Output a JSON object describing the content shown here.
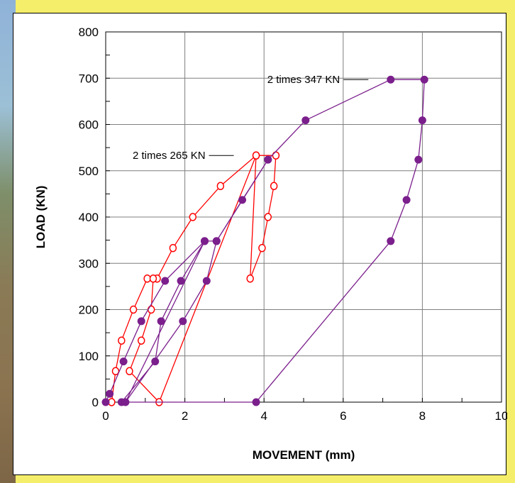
{
  "chart_data": {
    "type": "scatter",
    "xlabel": "MOVEMENT  (mm)",
    "ylabel": "LOAD  (KN)",
    "xlim": [
      0,
      10
    ],
    "ylim": [
      0,
      800
    ],
    "x_ticks": [
      0,
      2,
      4,
      6,
      8,
      10
    ],
    "y_ticks": [
      0,
      100,
      200,
      300,
      400,
      500,
      600,
      700,
      800
    ],
    "x_tick_labels": [
      "0",
      "2",
      "4",
      "6",
      "8",
      "10"
    ],
    "y_tick_labels": [
      "0",
      "100",
      "200",
      "300",
      "400",
      "500",
      "600",
      "700",
      "800"
    ],
    "grid": true,
    "series": [
      {
        "color": "#ff0000",
        "marker": "open-circle",
        "points": [
          [
            0.15,
            0
          ],
          [
            0.25,
            67
          ],
          [
            0.4,
            133
          ],
          [
            0.7,
            200
          ],
          [
            1.05,
            267
          ],
          [
            1.3,
            267
          ],
          [
            1.7,
            333
          ],
          [
            2.2,
            400
          ],
          [
            2.9,
            467
          ],
          [
            3.8,
            533
          ],
          [
            4.3,
            533
          ],
          [
            4.25,
            467
          ],
          [
            4.1,
            400
          ],
          [
            3.95,
            333
          ],
          [
            3.65,
            267
          ],
          [
            3.8,
            533
          ],
          [
            1.35,
            0
          ],
          [
            0.6,
            67
          ],
          [
            0.9,
            133
          ],
          [
            1.15,
            200
          ],
          [
            1.2,
            267
          ]
        ]
      },
      {
        "color": "#7b1f8c",
        "marker": "filled-circle",
        "points": [
          [
            0.0,
            0
          ],
          [
            0.1,
            18
          ],
          [
            0.45,
            88
          ],
          [
            0.9,
            175
          ],
          [
            1.5,
            262
          ],
          [
            2.5,
            348
          ],
          [
            2.8,
            348
          ],
          [
            3.45,
            437
          ],
          [
            4.1,
            524
          ],
          [
            5.05,
            609
          ],
          [
            7.2,
            697
          ],
          [
            8.05,
            697
          ],
          [
            8.0,
            609
          ],
          [
            7.9,
            524
          ],
          [
            7.6,
            437
          ],
          [
            7.2,
            348
          ],
          [
            3.8,
            0
          ],
          [
            0.4,
            0
          ],
          [
            1.25,
            88
          ],
          [
            1.4,
            175
          ],
          [
            1.9,
            262
          ],
          [
            2.5,
            348
          ],
          [
            0.5,
            0
          ],
          [
            1.95,
            175
          ],
          [
            2.55,
            262
          ],
          [
            2.8,
            348
          ],
          [
            4.1,
            524
          ]
        ]
      }
    ],
    "annotations": [
      {
        "text": "2 times 347 KN",
        "x": 6.6,
        "y": 697
      },
      {
        "text": "2 times 265 KN",
        "x": 3.2,
        "y": 533
      }
    ]
  }
}
